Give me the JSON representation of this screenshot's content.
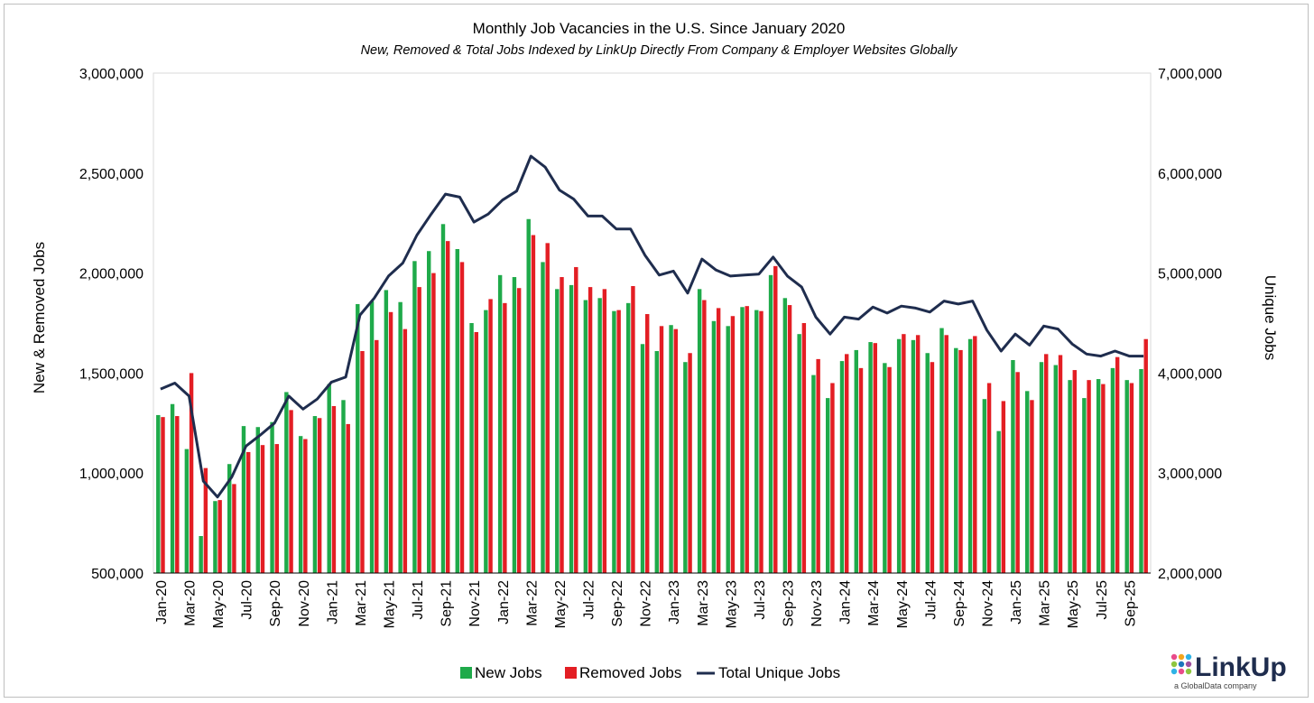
{
  "chart_data": {
    "type": "bar",
    "title": "Monthly Job Vacancies in the U.S. Since January 2020",
    "subtitle": "New, Removed & Total Jobs Indexed by LinkUp Directly From Company & Employer Websites Globally",
    "ylabel": "New & Removed Jobs",
    "y2label": "Unique Jobs",
    "ylim": [
      500000,
      3000000
    ],
    "y2lim": [
      2000000,
      7000000
    ],
    "yticks": [
      "500,000",
      "1,000,000",
      "1,500,000",
      "2,000,000",
      "2,500,000",
      "3,000,000"
    ],
    "y2ticks": [
      "2,000,000",
      "3,000,000",
      "4,000,000",
      "5,000,000",
      "6,000,000",
      "7,000,000"
    ],
    "grid": false,
    "legend_position": "bottom",
    "categories": [
      "Jan-20",
      "Feb-20",
      "Mar-20",
      "Apr-20",
      "May-20",
      "Jun-20",
      "Jul-20",
      "Aug-20",
      "Sep-20",
      "Oct-20",
      "Nov-20",
      "Dec-20",
      "Jan-21",
      "Feb-21",
      "Mar-21",
      "Apr-21",
      "May-21",
      "Jun-21",
      "Jul-21",
      "Aug-21",
      "Sep-21",
      "Oct-21",
      "Nov-21",
      "Dec-21",
      "Jan-22",
      "Feb-22",
      "Mar-22",
      "Apr-22",
      "May-22",
      "Jun-22",
      "Jul-22",
      "Aug-22",
      "Sep-22",
      "Oct-22",
      "Nov-22",
      "Dec-22",
      "Jan-23",
      "Feb-23",
      "Mar-23",
      "Apr-23",
      "May-23",
      "Jun-23",
      "Jul-23",
      "Aug-23",
      "Sep-23",
      "Oct-23",
      "Nov-23",
      "Dec-23",
      "Jan-24",
      "Feb-24",
      "Mar-24",
      "Apr-24",
      "May-24",
      "Jun-24",
      "Jul-24",
      "Aug-24",
      "Sep-24",
      "Oct-24",
      "Nov-24",
      "Dec-24",
      "Jan-25",
      "Feb-25",
      "Mar-25",
      "Apr-25",
      "May-25",
      "Jun-25",
      "Jul-25",
      "Aug-25",
      "Sep-25",
      "Oct-25"
    ],
    "series": [
      {
        "name": "New Jobs",
        "axis": "left",
        "type": "bar",
        "color": "#1faa4a",
        "values": [
          1290000,
          1345000,
          1120000,
          685000,
          860000,
          1045000,
          1235000,
          1230000,
          1255000,
          1405000,
          1185000,
          1285000,
          1445000,
          1365000,
          1845000,
          1860000,
          1915000,
          1855000,
          2060000,
          2110000,
          2245000,
          2120000,
          1750000,
          1815000,
          1990000,
          1980000,
          2270000,
          2055000,
          1920000,
          1940000,
          1865000,
          1875000,
          1810000,
          1850000,
          1645000,
          1610000,
          1740000,
          1555000,
          1920000,
          1760000,
          1735000,
          1830000,
          1815000,
          1990000,
          1875000,
          1695000,
          1490000,
          1375000,
          1560000,
          1615000,
          1655000,
          1550000,
          1670000,
          1665000,
          1600000,
          1725000,
          1625000,
          1670000,
          1370000,
          1210000,
          1565000,
          1410000,
          1555000,
          1540000,
          1465000,
          1375000,
          1470000,
          1525000,
          1465000,
          1520000
        ]
      },
      {
        "name": "Removed Jobs",
        "axis": "left",
        "type": "bar",
        "color": "#e31e24",
        "values": [
          1280000,
          1285000,
          1500000,
          1025000,
          865000,
          945000,
          1105000,
          1140000,
          1145000,
          1315000,
          1170000,
          1275000,
          1335000,
          1245000,
          1610000,
          1665000,
          1805000,
          1720000,
          1930000,
          2000000,
          2160000,
          2055000,
          1705000,
          1870000,
          1850000,
          1925000,
          2190000,
          2150000,
          1980000,
          2030000,
          1930000,
          1920000,
          1815000,
          1935000,
          1795000,
          1735000,
          1720000,
          1600000,
          1865000,
          1825000,
          1785000,
          1835000,
          1810000,
          2035000,
          1840000,
          1750000,
          1570000,
          1450000,
          1595000,
          1525000,
          1650000,
          1530000,
          1695000,
          1690000,
          1555000,
          1690000,
          1615000,
          1685000,
          1450000,
          1360000,
          1505000,
          1365000,
          1595000,
          1590000,
          1515000,
          1465000,
          1445000,
          1580000,
          1450000,
          1670000
        ]
      },
      {
        "name": "Total Unique Jobs",
        "axis": "right",
        "type": "line",
        "color": "#1f2d4e",
        "values": [
          3840000,
          3900000,
          3770000,
          2920000,
          2760000,
          2960000,
          3270000,
          3380000,
          3500000,
          3770000,
          3640000,
          3740000,
          3910000,
          3960000,
          4580000,
          4750000,
          4970000,
          5100000,
          5380000,
          5590000,
          5790000,
          5760000,
          5510000,
          5590000,
          5730000,
          5820000,
          6170000,
          6060000,
          5830000,
          5740000,
          5570000,
          5570000,
          5440000,
          5440000,
          5180000,
          4980000,
          5020000,
          4800000,
          5140000,
          5030000,
          4970000,
          4980000,
          4990000,
          5160000,
          4970000,
          4860000,
          4560000,
          4390000,
          4560000,
          4540000,
          4660000,
          4600000,
          4670000,
          4650000,
          4610000,
          4720000,
          4690000,
          4720000,
          4430000,
          4220000,
          4390000,
          4280000,
          4470000,
          4440000,
          4290000,
          4190000,
          4170000,
          4220000,
          4170000,
          4170000
        ]
      }
    ],
    "legend": [
      "New Jobs",
      "Removed Jobs",
      "Total Unique Jobs"
    ]
  },
  "logo": {
    "brand": "LinkUp",
    "tagline": "a GlobalData company"
  }
}
